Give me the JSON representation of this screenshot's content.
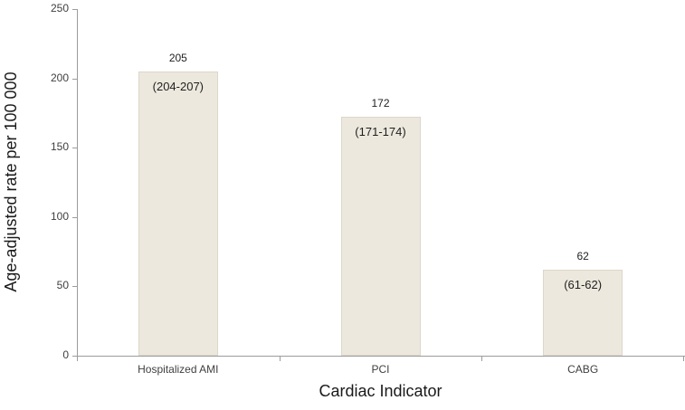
{
  "chart_data": {
    "type": "bar",
    "title": "",
    "xlabel": "Cardiac Indicator",
    "ylabel": "Age-adjusted rate per 100 000",
    "categories": [
      "Hospitalized AMI",
      "PCI",
      "CABG"
    ],
    "series": [
      {
        "name": "Age-adjusted rate",
        "values": [
          205,
          172,
          62
        ],
        "value_labels": [
          "205",
          "172",
          "62"
        ],
        "ci_labels": [
          "(204-207)",
          "(171-174)",
          "(61-62)"
        ]
      }
    ],
    "ylim": [
      0,
      250
    ],
    "yticks": [
      0,
      50,
      100,
      150,
      200,
      250
    ],
    "grid": false,
    "legend_position": "none",
    "colors": {
      "bar_fill": "#ece8dd",
      "bar_border": "#dcd7c9",
      "axis_line": "#9c9c9c",
      "tick_text": "#3f3f3f",
      "label_text": "#1f1f1f",
      "title_text": "#1a1a1a",
      "background": "#ffffff"
    }
  }
}
